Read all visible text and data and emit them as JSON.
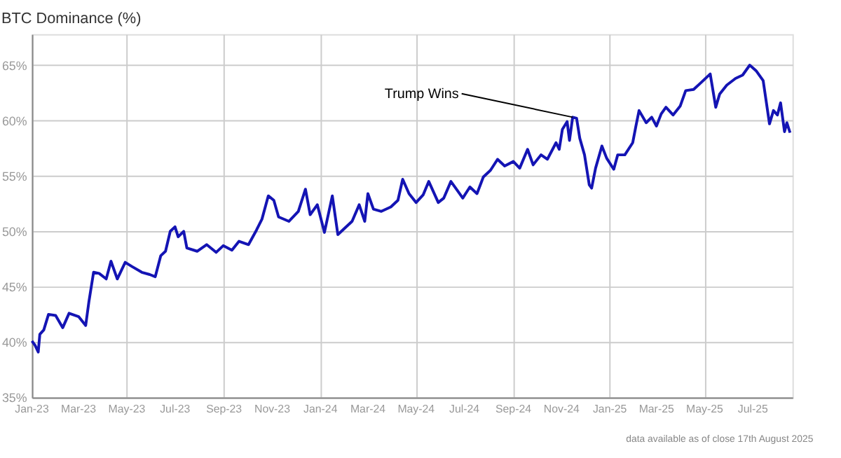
{
  "chart_data": {
    "type": "line",
    "title": "BTC Dominance (%)",
    "x": [
      "2023-01-01",
      "2023-01-05",
      "2023-01-09",
      "2023-01-11",
      "2023-01-16",
      "2023-01-22",
      "2023-01-31",
      "2023-02-09",
      "2023-02-17",
      "2023-03-01",
      "2023-03-10",
      "2023-03-14",
      "2023-03-20",
      "2023-03-27",
      "2023-04-05",
      "2023-04-11",
      "2023-04-19",
      "2023-04-29",
      "2023-05-08",
      "2023-05-20",
      "2023-05-30",
      "2023-06-06",
      "2023-06-13",
      "2023-06-19",
      "2023-06-25",
      "2023-07-01",
      "2023-07-05",
      "2023-07-12",
      "2023-07-16",
      "2023-07-29",
      "2023-08-10",
      "2023-08-22",
      "2023-08-31",
      "2023-09-11",
      "2023-09-20",
      "2023-10-02",
      "2023-10-12",
      "2023-10-19",
      "2023-10-27",
      "2023-11-03",
      "2023-11-09",
      "2023-11-22",
      "2023-12-04",
      "2023-12-13",
      "2023-12-19",
      "2023-12-28",
      "2024-01-06",
      "2024-01-16",
      "2024-01-23",
      "2024-02-01",
      "2024-02-10",
      "2024-02-19",
      "2024-02-26",
      "2024-03-01",
      "2024-03-08",
      "2024-03-18",
      "2024-03-30",
      "2024-04-08",
      "2024-04-14",
      "2024-04-22",
      "2024-05-01",
      "2024-05-10",
      "2024-05-17",
      "2024-05-29",
      "2024-06-05",
      "2024-06-14",
      "2024-06-21",
      "2024-06-29",
      "2024-07-08",
      "2024-07-17",
      "2024-07-25",
      "2024-08-03",
      "2024-08-12",
      "2024-08-21",
      "2024-09-01",
      "2024-09-09",
      "2024-09-19",
      "2024-09-26",
      "2024-10-06",
      "2024-10-14",
      "2024-10-25",
      "2024-10-29",
      "2024-11-02",
      "2024-11-08",
      "2024-11-11",
      "2024-11-15",
      "2024-11-20",
      "2024-11-24",
      "2024-11-30",
      "2024-12-06",
      "2024-12-09",
      "2024-12-14",
      "2024-12-22",
      "2024-12-28",
      "2025-01-06",
      "2025-01-11",
      "2025-01-20",
      "2025-01-30",
      "2025-02-03",
      "2025-02-07",
      "2025-02-16",
      "2025-02-23",
      "2025-03-01",
      "2025-03-07",
      "2025-03-13",
      "2025-03-22",
      "2025-03-31",
      "2025-04-07",
      "2025-04-17",
      "2025-04-26",
      "2025-05-08",
      "2025-05-15",
      "2025-05-20",
      "2025-05-29",
      "2025-06-09",
      "2025-06-18",
      "2025-06-27",
      "2025-07-05",
      "2025-07-14",
      "2025-07-22",
      "2025-07-27",
      "2025-08-01",
      "2025-08-05",
      "2025-08-10",
      "2025-08-13",
      "2025-08-17"
    ],
    "series": [
      {
        "color": "#1414b4",
        "values": [
          40.1,
          39.7,
          39.1,
          40.7,
          41.1,
          42.5,
          42.4,
          41.3,
          42.6,
          42.3,
          41.5,
          43.6,
          46.3,
          46.2,
          45.7,
          47.3,
          45.7,
          47.2,
          46.8,
          46.3,
          46.1,
          45.9,
          47.8,
          48.2,
          50.0,
          50.4,
          49.5,
          50.0,
          48.5,
          48.2,
          48.8,
          48.1,
          48.7,
          48.3,
          49.1,
          48.8,
          50.1,
          51.1,
          53.2,
          52.8,
          51.3,
          50.9,
          51.8,
          53.8,
          51.5,
          52.4,
          49.9,
          53.2,
          49.7,
          50.3,
          50.9,
          52.4,
          50.9,
          53.4,
          52.0,
          51.8,
          52.2,
          52.8,
          54.7,
          53.4,
          52.6,
          53.3,
          54.5,
          52.6,
          53.0,
          54.5,
          53.8,
          53.0,
          54.0,
          53.4,
          54.9,
          55.5,
          56.5,
          55.9,
          56.3,
          55.7,
          57.4,
          56.0,
          56.9,
          56.5,
          58.0,
          57.4,
          59.2,
          59.9,
          58.2,
          60.3,
          60.2,
          58.4,
          56.9,
          54.2,
          53.9,
          55.7,
          57.7,
          56.6,
          55.6,
          56.9,
          56.9,
          58.0,
          59.5,
          60.9,
          59.8,
          60.3,
          59.5,
          60.6,
          61.2,
          60.5,
          61.3,
          62.7,
          62.8,
          63.4,
          64.2,
          61.2,
          62.4,
          63.2,
          63.8,
          64.1,
          65.0,
          64.5,
          63.6,
          59.7,
          60.9,
          60.5,
          61.6,
          59.0,
          59.8,
          58.9
        ]
      }
    ],
    "xlim": [
      "2023-01-01",
      "2025-08-20"
    ],
    "xticks": [
      {
        "value": "2023-01-01",
        "label": "Jan-23"
      },
      {
        "value": "2023-03-01",
        "label": "Mar-23"
      },
      {
        "value": "2023-05-01",
        "label": "May-23"
      },
      {
        "value": "2023-07-01",
        "label": "Jul-23"
      },
      {
        "value": "2023-09-01",
        "label": "Sep-23"
      },
      {
        "value": "2023-11-01",
        "label": "Nov-23"
      },
      {
        "value": "2024-01-01",
        "label": "Jan-24"
      },
      {
        "value": "2024-03-01",
        "label": "Mar-24"
      },
      {
        "value": "2024-05-01",
        "label": "May-24"
      },
      {
        "value": "2024-07-01",
        "label": "Jul-24"
      },
      {
        "value": "2024-09-01",
        "label": "Sep-24"
      },
      {
        "value": "2024-11-01",
        "label": "Nov-24"
      },
      {
        "value": "2025-01-01",
        "label": "Jan-25"
      },
      {
        "value": "2025-03-01",
        "label": "Mar-25"
      },
      {
        "value": "2025-05-01",
        "label": "May-25"
      },
      {
        "value": "2025-07-01",
        "label": "Jul-25"
      }
    ],
    "ylim": [
      35,
      67.8
    ],
    "yticks": [
      {
        "value": 35,
        "label": "35%"
      },
      {
        "value": 40,
        "label": "40%"
      },
      {
        "value": 45,
        "label": "45%"
      },
      {
        "value": 50,
        "label": "50%"
      },
      {
        "value": 55,
        "label": "55%"
      },
      {
        "value": 60,
        "label": "60%"
      },
      {
        "value": 65,
        "label": "65%"
      }
    ],
    "grid": true,
    "marker": "none",
    "line_style": "solid",
    "annotations": [
      {
        "text": "Trump Wins",
        "x": "2024-11-15",
        "y": 60.3
      },
      "data available as of close 17th August 2025"
    ]
  }
}
